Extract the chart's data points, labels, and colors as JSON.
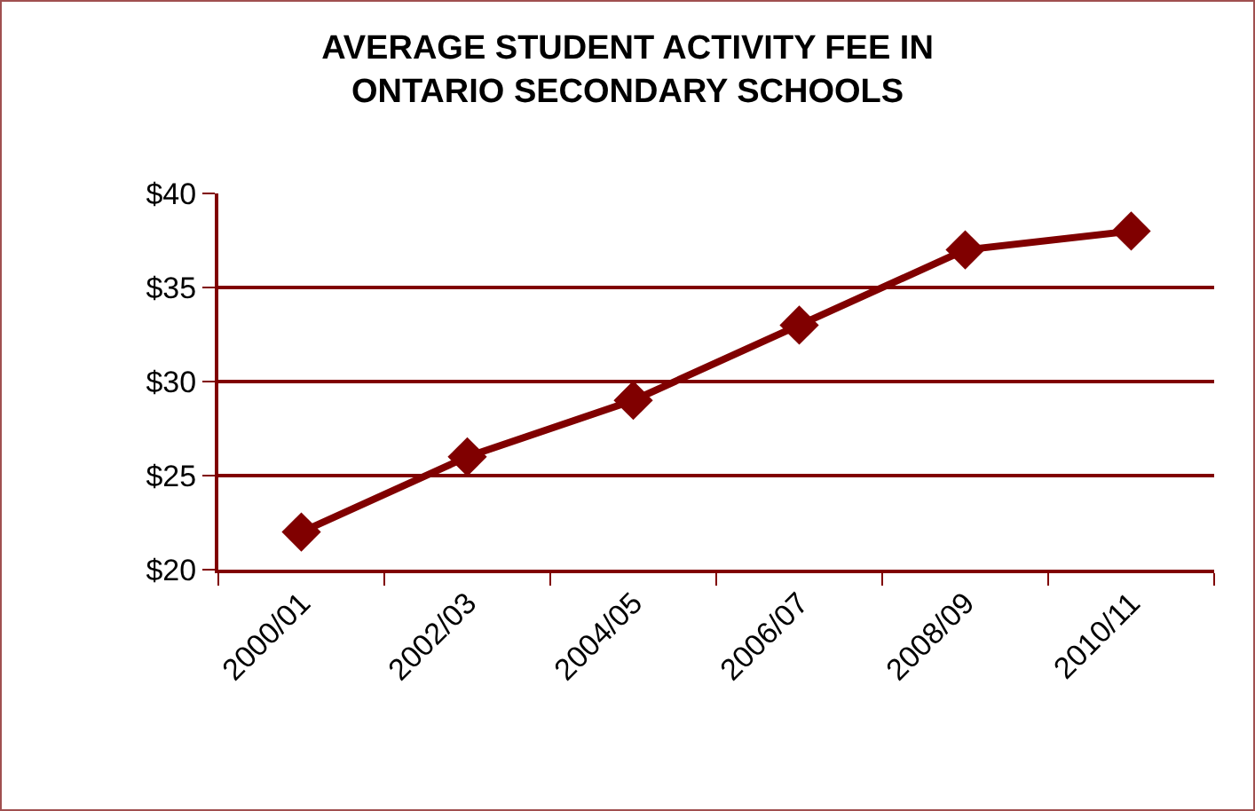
{
  "chart_data": {
    "type": "line",
    "title": "AVERAGE STUDENT ACTIVITY FEE IN\nONTARIO SECONDARY SCHOOLS",
    "categories": [
      "2000/01",
      "2002/03",
      "2004/05",
      "2006/07",
      "2008/09",
      "2010/11"
    ],
    "series": [
      {
        "color": "#800000",
        "values": [
          22,
          26,
          29,
          33,
          37,
          38
        ]
      }
    ],
    "ylim": [
      20,
      40
    ],
    "yticks": [
      {
        "value": 20,
        "label": "$20"
      },
      {
        "value": 25,
        "label": "$25"
      },
      {
        "value": 30,
        "label": "$30"
      },
      {
        "value": 35,
        "label": "$35"
      },
      {
        "value": 40,
        "label": "$40"
      }
    ],
    "grid": "y",
    "marker": "diamond",
    "line_style": "solid"
  }
}
